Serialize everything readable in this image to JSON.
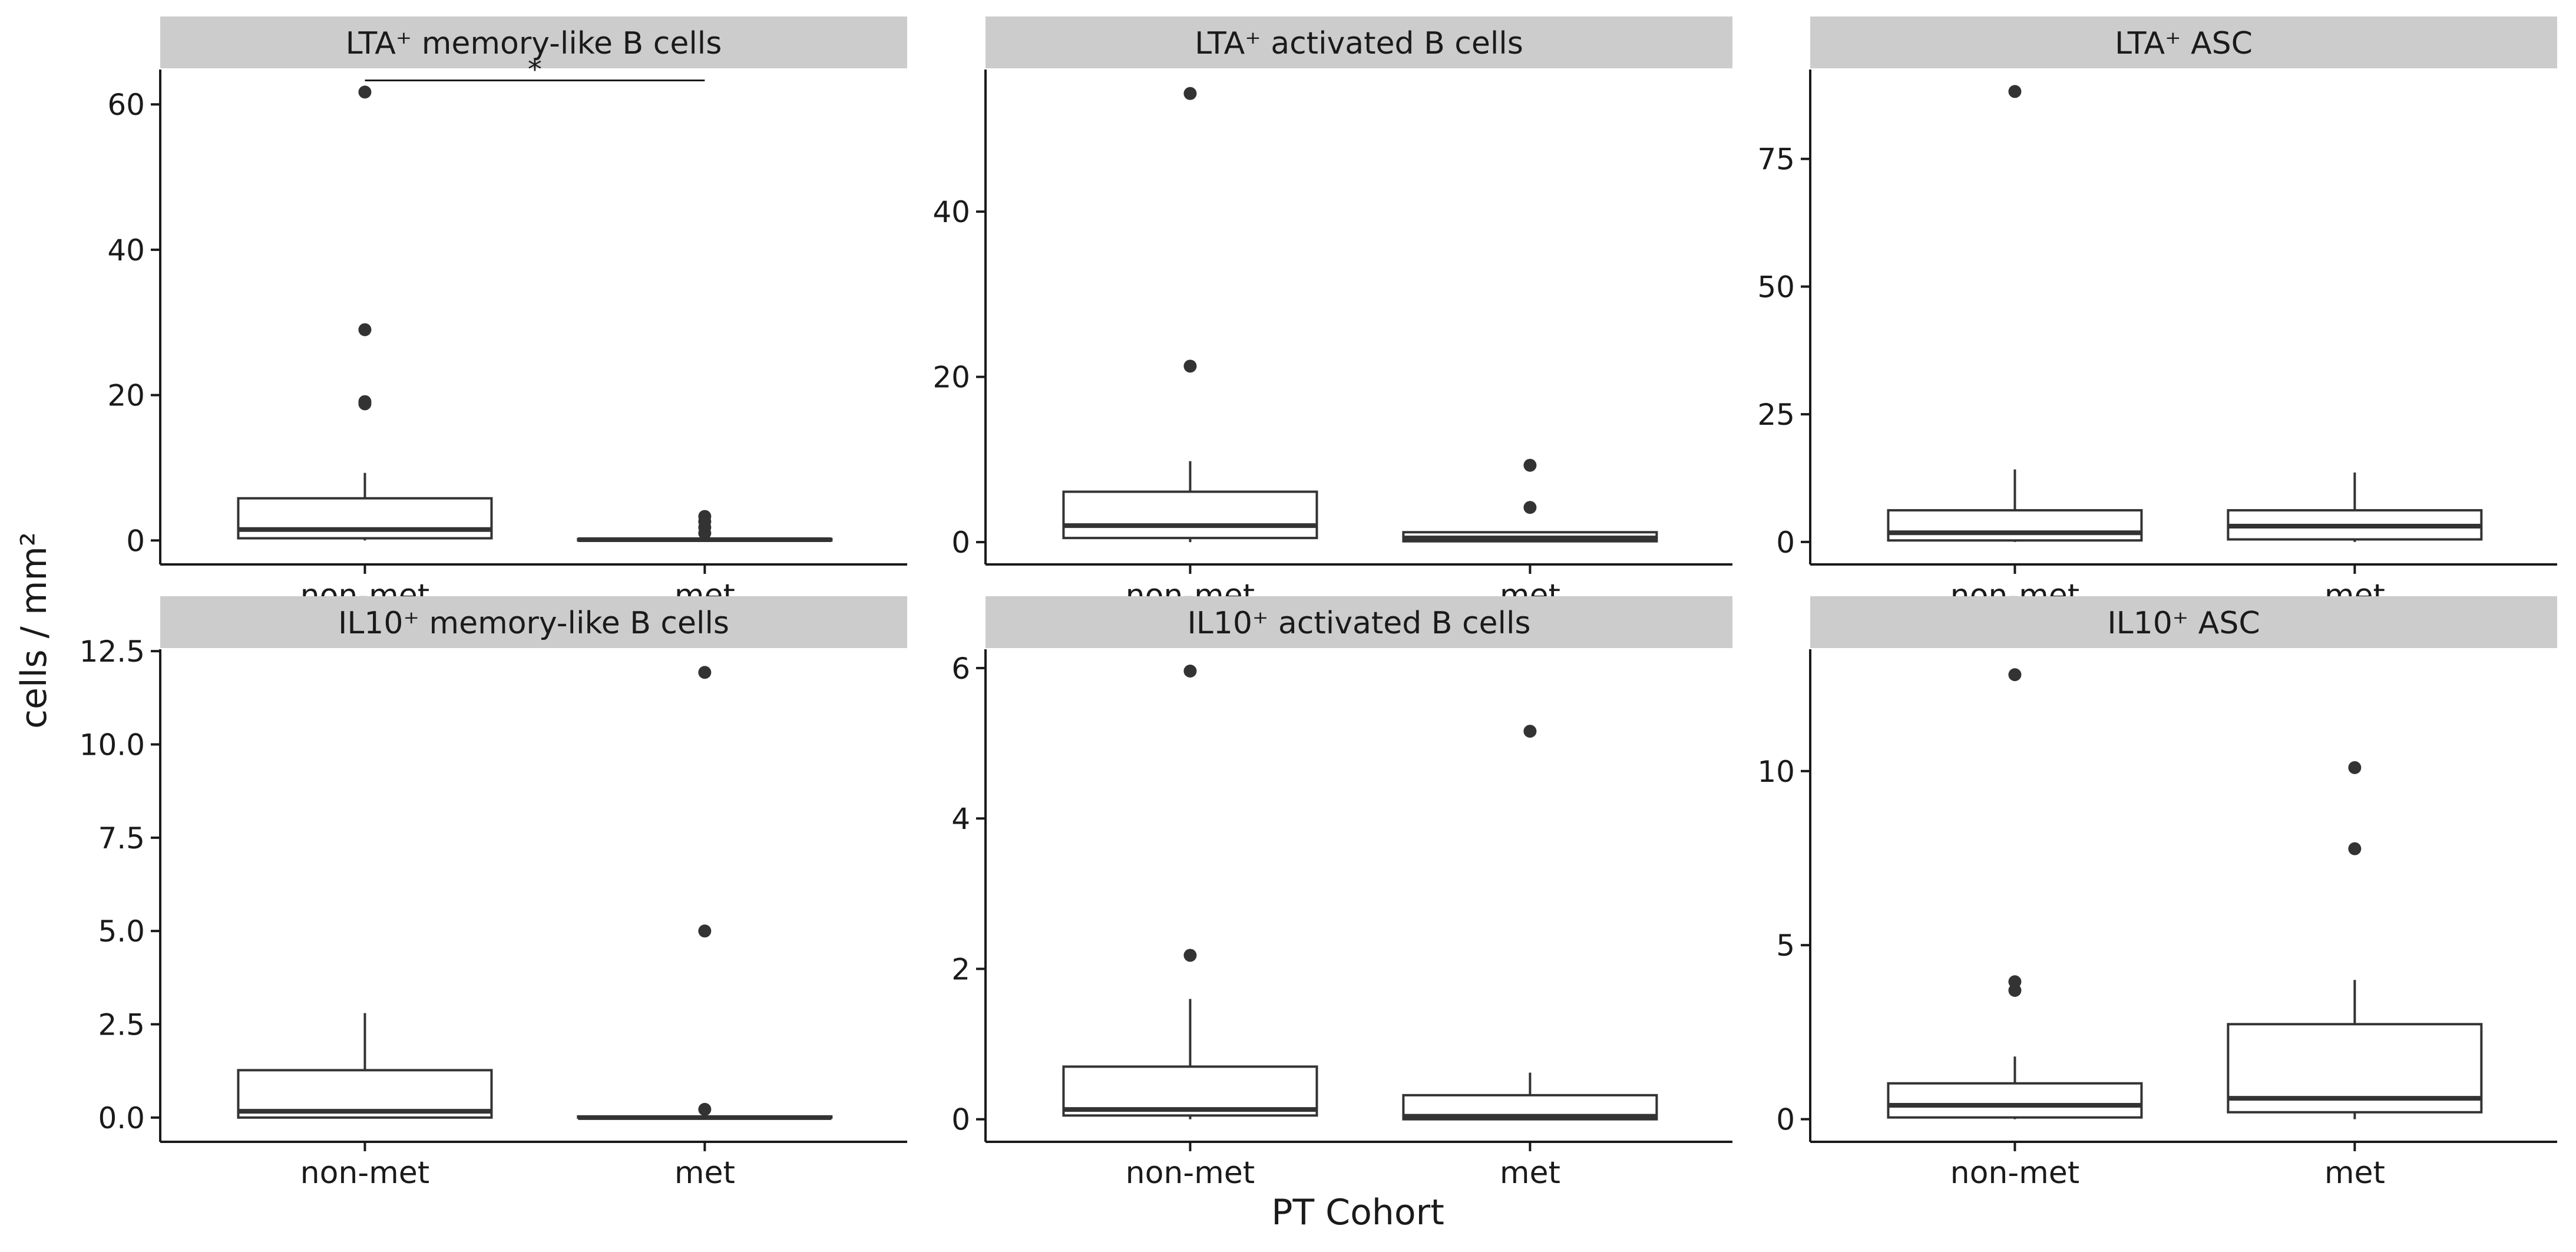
{
  "figure": {
    "y_axis_label": "cells / mm²",
    "x_axis_label": "PT Cohort"
  },
  "colors": {
    "strip_fill": "#cccccc",
    "axis": "#1a1a1a",
    "box_stroke": "#333333",
    "point": "#333333",
    "background": "#ffffff"
  },
  "chart_data": [
    {
      "type": "box",
      "title": "LTA⁺ memory-like B cells",
      "categories": [
        "non-met",
        "met"
      ],
      "xlabel": "PT Cohort",
      "ylabel": "cells / mm²",
      "ylim": [
        -3.3,
        64.8
      ],
      "yticks": [
        0,
        20,
        40,
        60
      ],
      "boxes": [
        {
          "group": "non-met",
          "q1": 0.3,
          "median": 1.5,
          "q3": 5.8,
          "whisker_low": 0,
          "whisker_high": 9.3,
          "outliers": [
            18.8,
            19.1,
            29.0,
            61.7
          ]
        },
        {
          "group": "met",
          "q1": 0.0,
          "median": 0.1,
          "q3": 0.2,
          "whisker_low": 0,
          "whisker_high": 0.4,
          "outliers": [
            1.0,
            1.8,
            2.6,
            3.3
          ]
        }
      ],
      "significance": {
        "from": "non-met",
        "to": "met",
        "label": "*",
        "y": 63.3
      }
    },
    {
      "type": "box",
      "title": "LTA⁺ activated B cells",
      "categories": [
        "non-met",
        "met"
      ],
      "xlabel": "PT Cohort",
      "ylabel": "cells / mm²",
      "ylim": [
        -2.7,
        57.2
      ],
      "yticks": [
        0,
        20,
        40
      ],
      "boxes": [
        {
          "group": "non-met",
          "q1": 0.5,
          "median": 2.0,
          "q3": 6.1,
          "whisker_low": 0,
          "whisker_high": 9.8,
          "outliers": [
            21.3,
            54.3
          ]
        },
        {
          "group": "met",
          "q1": 0.1,
          "median": 0.5,
          "q3": 1.2,
          "whisker_low": 0,
          "whisker_high": 1.3,
          "outliers": [
            4.2,
            9.3
          ]
        }
      ]
    },
    {
      "type": "box",
      "title": "LTA⁺ ASC",
      "categories": [
        "non-met",
        "met"
      ],
      "xlabel": "PT Cohort",
      "ylabel": "cells / mm²",
      "ylim": [
        -4.4,
        92.5
      ],
      "yticks": [
        0,
        25,
        50,
        75
      ],
      "boxes": [
        {
          "group": "non-met",
          "q1": 0.3,
          "median": 1.8,
          "q3": 6.2,
          "whisker_low": 0,
          "whisker_high": 14.2,
          "outliers": [
            88.2
          ]
        },
        {
          "group": "met",
          "q1": 0.5,
          "median": 3.1,
          "q3": 6.2,
          "whisker_low": 0,
          "whisker_high": 13.6,
          "outliers": []
        }
      ]
    },
    {
      "type": "box",
      "title": "IL10⁺ memory-like B cells",
      "categories": [
        "non-met",
        "met"
      ],
      "xlabel": "PT Cohort",
      "ylabel": "cells / mm²",
      "ylim": [
        -0.65,
        12.55
      ],
      "yticks": [
        0.0,
        2.5,
        5.0,
        7.5,
        10.0,
        12.5
      ],
      "tick_format": 1,
      "boxes": [
        {
          "group": "non-met",
          "q1": 0.0,
          "median": 0.17,
          "q3": 1.27,
          "whisker_low": 0,
          "whisker_high": 2.8,
          "outliers": []
        },
        {
          "group": "met",
          "q1": 0.0,
          "median": 0.0,
          "q3": 0.03,
          "whisker_low": 0,
          "whisker_high": 0.05,
          "outliers": [
            0.22,
            5.0,
            11.93
          ]
        }
      ]
    },
    {
      "type": "box",
      "title": "IL10⁺ activated B cells",
      "categories": [
        "non-met",
        "met"
      ],
      "xlabel": "PT Cohort",
      "ylabel": "cells / mm²",
      "ylim": [
        -0.3,
        6.25
      ],
      "yticks": [
        0,
        2,
        4,
        6
      ],
      "boxes": [
        {
          "group": "non-met",
          "q1": 0.05,
          "median": 0.13,
          "q3": 0.7,
          "whisker_low": 0,
          "whisker_high": 1.6,
          "outliers": [
            2.18,
            5.96
          ]
        },
        {
          "group": "met",
          "q1": 0.0,
          "median": 0.04,
          "q3": 0.32,
          "whisker_low": 0,
          "whisker_high": 0.62,
          "outliers": [
            5.16
          ]
        }
      ]
    },
    {
      "type": "box",
      "title": "IL10⁺ ASC",
      "categories": [
        "non-met",
        "met"
      ],
      "xlabel": "PT Cohort",
      "ylabel": "cells / mm²",
      "ylim": [
        -0.65,
        13.5
      ],
      "yticks": [
        0,
        5,
        10
      ],
      "boxes": [
        {
          "group": "non-met",
          "q1": 0.05,
          "median": 0.4,
          "q3": 1.03,
          "whisker_low": 0,
          "whisker_high": 1.8,
          "outliers": [
            3.7,
            3.95,
            12.77
          ]
        },
        {
          "group": "met",
          "q1": 0.2,
          "median": 0.6,
          "q3": 2.73,
          "whisker_low": 0,
          "whisker_high": 4.0,
          "outliers": [
            7.77,
            10.1
          ]
        }
      ]
    }
  ]
}
